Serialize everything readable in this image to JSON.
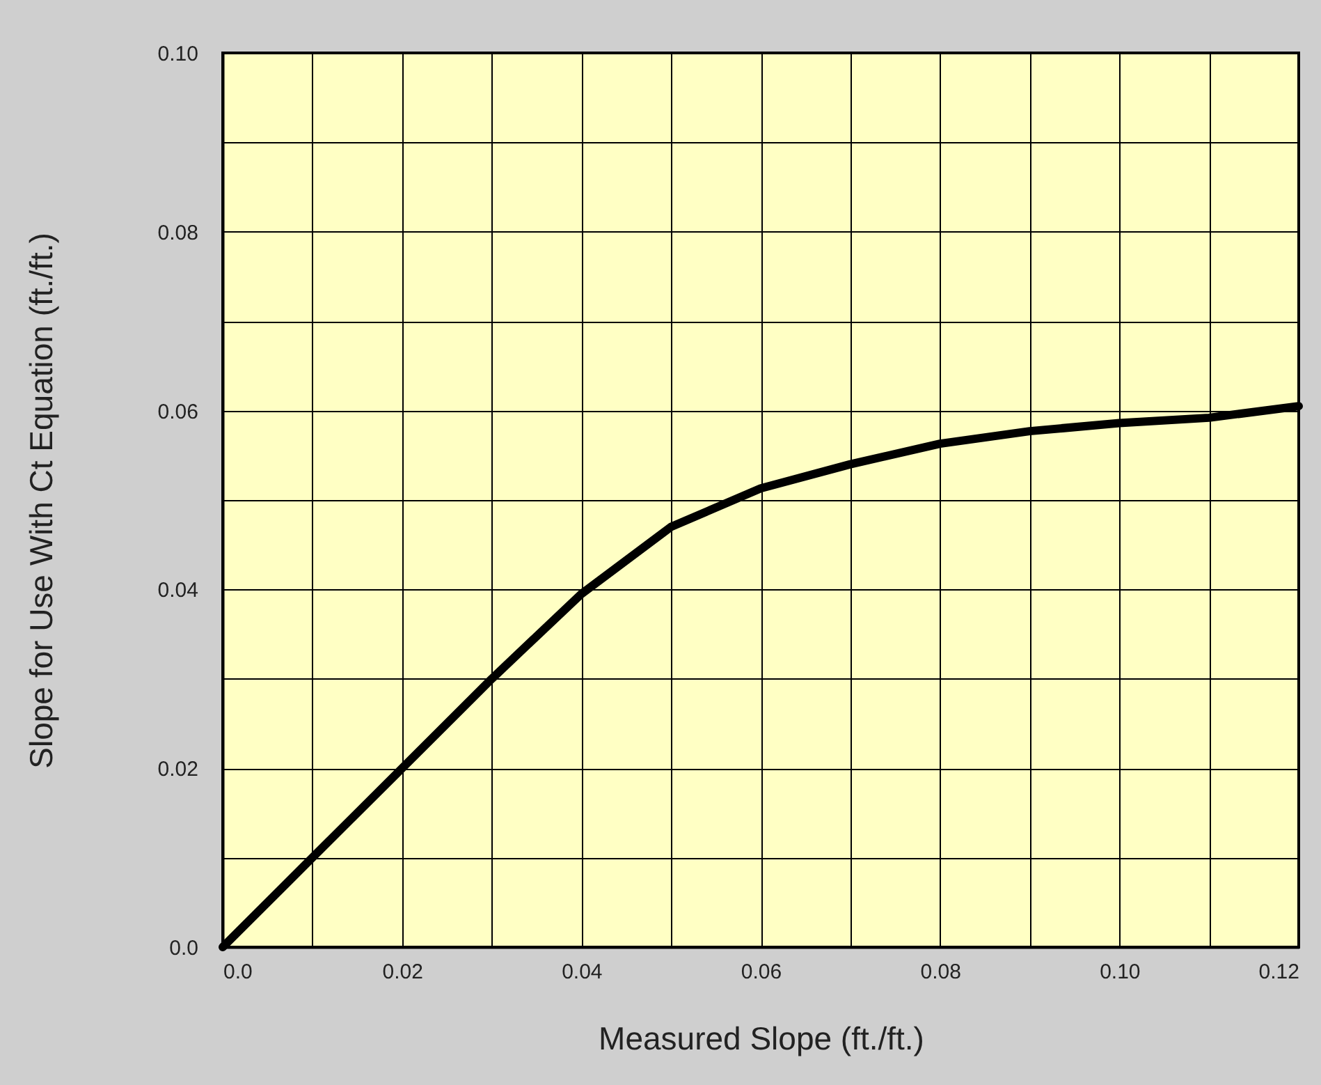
{
  "chart_data": {
    "type": "line",
    "xlabel": "Measured Slope (ft./ft.)",
    "ylabel": "Slope for Use With Ct Equation (ft./ft.)",
    "x": [
      0,
      0.01,
      0.02,
      0.03,
      0.04,
      0.05,
      0.06,
      0.07,
      0.08,
      0.09,
      0.1,
      0.11,
      0.12
    ],
    "series": [
      {
        "color": "#000000",
        "values": [
          0,
          0.01,
          0.02,
          0.03,
          0.0395,
          0.047,
          0.0513,
          0.054,
          0.0563,
          0.0577,
          0.0586,
          0.0592,
          0.0605
        ]
      }
    ],
    "xlim": [
      0,
      0.12
    ],
    "ylim": [
      0,
      0.1
    ],
    "xticks": [
      {
        "value": 0,
        "label": "0.0"
      },
      {
        "value": 0.01,
        "label": null
      },
      0.02,
      {
        "value": 0.03,
        "label": null
      },
      0.04,
      {
        "value": 0.05,
        "label": null
      },
      0.06,
      {
        "value": 0.07,
        "label": null
      },
      0.08,
      {
        "value": 0.09,
        "label": null
      },
      {
        "value": 0.1,
        "label": "0.10"
      },
      {
        "value": 0.11,
        "label": null
      },
      0.12
    ],
    "yticks": [
      {
        "value": 0,
        "label": "0.0"
      },
      {
        "value": 0.01,
        "label": null
      },
      0.02,
      {
        "value": 0.03,
        "label": null
      },
      0.04,
      {
        "value": 0.05,
        "label": null
      },
      0.06,
      {
        "value": 0.07,
        "label": null
      },
      0.08,
      {
        "value": 0.09,
        "label": null
      },
      {
        "value": 0.1,
        "label": "0.10"
      }
    ],
    "grid": true,
    "marker": "none",
    "line_style": "solid"
  }
}
